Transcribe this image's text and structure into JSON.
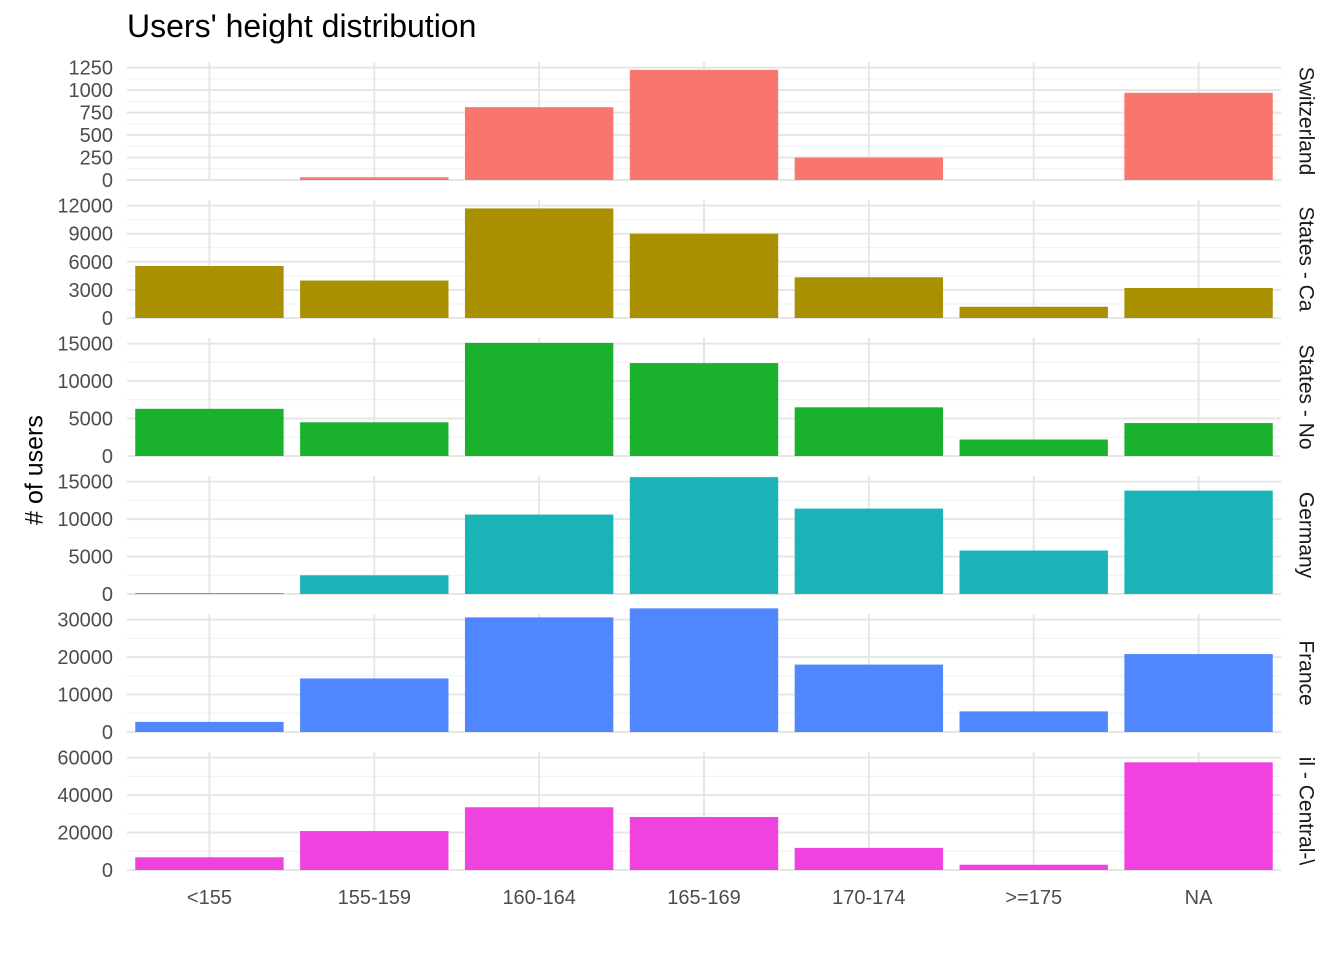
{
  "chart_data": {
    "type": "bar",
    "title": "Users' height distribution",
    "xlabel": "",
    "ylabel": "# of users",
    "grid": true,
    "legend": "none",
    "categories": [
      "<155",
      "155-159",
      "160-164",
      "165-169",
      "170-174",
      ">=175",
      "NA"
    ],
    "panels": [
      {
        "strip_label": "Switzerland",
        "color": "#F8766D",
        "values": [
          0,
          30,
          810,
          1225,
          250,
          0,
          970
        ],
        "ylim": [
          0,
          1250
        ],
        "yticks": [
          0,
          250,
          500,
          750,
          1000,
          1250
        ],
        "ytick_labels": [
          "0",
          "250",
          "500",
          "750",
          "1000",
          "1250"
        ]
      },
      {
        "strip_label": "States - Ca",
        "color": "#A89000",
        "values": [
          5550,
          4000,
          11700,
          9000,
          4350,
          1200,
          3200
        ],
        "ylim": [
          0,
          12000
        ],
        "yticks": [
          0,
          3000,
          6000,
          9000,
          12000
        ],
        "ytick_labels": [
          "0",
          "3000",
          "6000",
          "9000",
          "12000"
        ]
      },
      {
        "strip_label": "States - No",
        "color": "#1AB22D",
        "values": [
          6300,
          4500,
          15100,
          12400,
          6500,
          2200,
          4400
        ],
        "ylim": [
          0,
          15000
        ],
        "yticks": [
          0,
          5000,
          10000,
          15000
        ],
        "ytick_labels": [
          "0",
          "5000",
          "10000",
          "15000"
        ]
      },
      {
        "strip_label": "Germany",
        "color": "#1AB4B8",
        "values": [
          120,
          2500,
          10600,
          15600,
          11400,
          5800,
          13800
        ],
        "ylim": [
          0,
          15000
        ],
        "yticks": [
          0,
          5000,
          10000,
          15000
        ],
        "ytick_labels": [
          "0",
          "5000",
          "10000",
          "15000"
        ]
      },
      {
        "strip_label": "France",
        "color": "#5087FF",
        "values": [
          2700,
          14300,
          30600,
          33000,
          18000,
          5500,
          20800
        ],
        "ylim": [
          0,
          30000
        ],
        "yticks": [
          0,
          10000,
          20000,
          30000
        ],
        "ytick_labels": [
          "0",
          "10000",
          "20000",
          "30000"
        ]
      },
      {
        "strip_label": "il - Central-\\",
        "color": "#F042DE",
        "values": [
          6800,
          20800,
          33500,
          28300,
          11800,
          2800,
          57500
        ],
        "ylim": [
          0,
          60000
        ],
        "yticks": [
          0,
          20000,
          40000,
          60000
        ],
        "ytick_labels": [
          "0",
          "20000",
          "40000",
          "60000"
        ]
      }
    ]
  }
}
